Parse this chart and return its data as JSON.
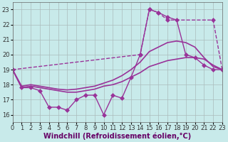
{
  "xlabel": "Windchill (Refroidissement éolien,°C)",
  "ylabel": "",
  "bg_color": "#c8eaea",
  "grid_color": "#aabbbb",
  "line_color": "#993399",
  "xlim": [
    0,
    23
  ],
  "ylim": [
    15.5,
    23.5
  ],
  "xticks": [
    0,
    1,
    2,
    3,
    4,
    5,
    6,
    7,
    8,
    9,
    10,
    11,
    12,
    13,
    14,
    15,
    16,
    17,
    18,
    19,
    20,
    21,
    22,
    23
  ],
  "yticks": [
    16,
    17,
    18,
    19,
    20,
    21,
    22,
    23
  ],
  "series": [
    {
      "x": [
        0,
        1,
        2,
        3,
        4,
        5,
        6,
        7,
        8,
        9,
        10,
        11,
        12,
        13,
        14,
        15,
        16,
        17,
        18,
        19,
        20,
        21,
        22,
        23
      ],
      "y": [
        19,
        17.8,
        17.8,
        17.6,
        16.5,
        16.5,
        16.3,
        17.0,
        17.3,
        17.3,
        16.0,
        17.3,
        17.1,
        18.5,
        20.0,
        23.0,
        22.8,
        22.5,
        22.3,
        20.0,
        19.8,
        19.3,
        19.0,
        19.0
      ],
      "marker": "D",
      "markersize": 3,
      "linewidth": 1.0,
      "linestyle": "-"
    },
    {
      "x": [
        0,
        1,
        2,
        3,
        4,
        5,
        6,
        7,
        8,
        9,
        10,
        11,
        12,
        13,
        14,
        15,
        16,
        17,
        18,
        19,
        20,
        21,
        22,
        23
      ],
      "y": [
        19,
        17.8,
        17.9,
        17.8,
        17.7,
        17.6,
        17.5,
        17.5,
        17.6,
        17.7,
        17.9,
        18.0,
        18.2,
        18.5,
        18.8,
        19.2,
        19.4,
        19.6,
        19.7,
        19.8,
        19.8,
        19.7,
        19.3,
        19.0
      ],
      "marker": null,
      "markersize": 0,
      "linewidth": 1.2,
      "linestyle": "-"
    },
    {
      "x": [
        0,
        1,
        2,
        3,
        4,
        5,
        6,
        7,
        8,
        9,
        10,
        11,
        12,
        13,
        14,
        15,
        16,
        17,
        18,
        19,
        20,
        21,
        22,
        23
      ],
      "y": [
        19,
        17.9,
        18.0,
        17.9,
        17.8,
        17.7,
        17.65,
        17.7,
        17.8,
        17.9,
        18.1,
        18.3,
        18.6,
        19.0,
        19.5,
        20.2,
        20.5,
        20.8,
        20.9,
        20.8,
        20.5,
        19.8,
        19.2,
        19.0
      ],
      "marker": null,
      "markersize": 0,
      "linewidth": 1.2,
      "linestyle": "-"
    },
    {
      "x": [
        0,
        14,
        15,
        16,
        17,
        22,
        23
      ],
      "y": [
        19,
        20.0,
        23.0,
        22.8,
        22.3,
        22.3,
        19.0
      ],
      "marker": "D",
      "markersize": 3,
      "linewidth": 1.0,
      "linestyle": "--"
    }
  ],
  "tick_fontsize": 6,
  "xlabel_fontsize": 7
}
